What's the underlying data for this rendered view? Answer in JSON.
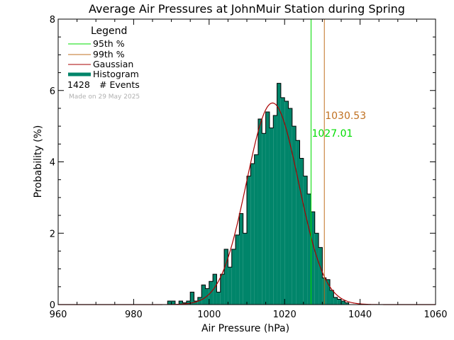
{
  "chart_data": {
    "type": "bar",
    "title": "Average Air Pressures at JohnMuir Station during Spring",
    "xlabel": "Air Pressure (hPa)",
    "ylabel": "Probability (%)",
    "xlim": [
      960,
      1060
    ],
    "ylim": [
      0,
      8
    ],
    "x_ticks": [
      "960",
      "980",
      "1000",
      "1020",
      "1040",
      "1060"
    ],
    "y_ticks": [
      "0",
      "2",
      "4",
      "6",
      "8"
    ],
    "legend": {
      "title": "Legend",
      "placement": "top-left",
      "items": [
        {
          "label": "95th %",
          "color": "#00dd00"
        },
        {
          "label": "99th %",
          "color": "#c07020"
        },
        {
          "label": "Gaussian",
          "color": "#aa0000"
        },
        {
          "label": "Histogram",
          "color": "#00856a"
        }
      ],
      "events_count": "1428",
      "events_label": "# Events",
      "made_on": "Made on 29 May 2025"
    },
    "percentile_95": {
      "value": 1027.01,
      "label": "1027.01",
      "color": "#00dd00"
    },
    "percentile_99": {
      "value": 1030.53,
      "label": "1030.53",
      "color": "#c07020"
    },
    "gaussian": {
      "mean": 1016.8,
      "sd": 6.9,
      "peak": 5.65,
      "color": "#aa0000"
    },
    "histogram": {
      "color": "#00856a",
      "bin_width": 1,
      "bin_starts": [
        989,
        990,
        991,
        992,
        993,
        994,
        995,
        996,
        997,
        998,
        999,
        1000,
        1001,
        1002,
        1003,
        1004,
        1005,
        1006,
        1007,
        1008,
        1009,
        1010,
        1011,
        1012,
        1013,
        1014,
        1015,
        1016,
        1017,
        1018,
        1019,
        1020,
        1021,
        1022,
        1023,
        1024,
        1025,
        1026,
        1027,
        1028,
        1029,
        1030,
        1031,
        1032,
        1033,
        1034,
        1035,
        1036
      ],
      "values": [
        0.1,
        0.1,
        0.0,
        0.1,
        0.05,
        0.1,
        0.35,
        0.1,
        0.2,
        0.55,
        0.45,
        0.65,
        0.85,
        0.35,
        0.85,
        1.55,
        1.05,
        1.55,
        1.95,
        2.55,
        2.0,
        3.6,
        3.95,
        4.2,
        5.2,
        4.8,
        5.4,
        4.95,
        5.3,
        6.2,
        5.8,
        5.7,
        5.5,
        5.0,
        4.6,
        4.1,
        3.6,
        3.1,
        2.6,
        2.0,
        1.6,
        0.75,
        0.7,
        0.4,
        0.2,
        0.15,
        0.1,
        0.05
      ]
    }
  }
}
